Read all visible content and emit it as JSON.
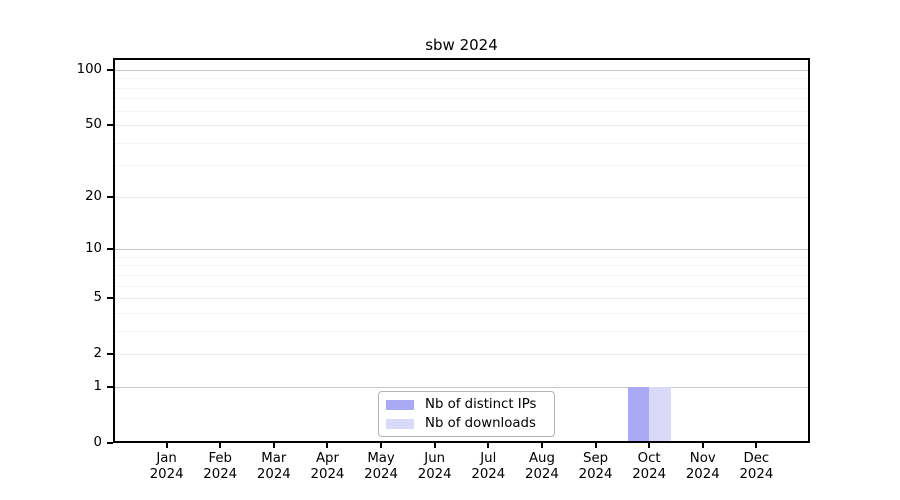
{
  "title": "sbw 2024",
  "legend": {
    "items": [
      {
        "label": "Nb of distinct IPs",
        "color": "#a9a9f5"
      },
      {
        "label": "Nb of downloads",
        "color": "#dadaf8"
      }
    ],
    "border_color": "#b4b4b4",
    "position": "bottom-center"
  },
  "chart_data": {
    "type": "bar",
    "title": "sbw 2024",
    "scale": "log1p",
    "categories": [
      "Jan",
      "Feb",
      "Mar",
      "Apr",
      "May",
      "Jun",
      "Jul",
      "Aug",
      "Sep",
      "Oct",
      "Nov",
      "Dec"
    ],
    "category_year": "2024",
    "series": [
      {
        "name": "Nb of distinct IPs",
        "color": "#a9a9f5",
        "values": [
          0,
          0,
          0,
          0,
          0,
          0,
          0,
          0,
          0,
          1,
          0,
          0
        ]
      },
      {
        "name": "Nb of downloads",
        "color": "#dadaf8",
        "values": [
          0,
          0,
          0,
          0,
          0,
          0,
          0,
          0,
          0,
          1,
          0,
          0
        ]
      }
    ],
    "xlabel": "",
    "ylabel": "",
    "yticks": [
      0,
      1,
      2,
      5,
      10,
      20,
      50,
      100
    ],
    "minor_yticks": [
      3,
      4,
      6,
      7,
      8,
      9,
      30,
      40,
      60,
      70,
      80,
      90
    ],
    "ylim": [
      0,
      116
    ],
    "grid": "horizontal",
    "colors": {
      "strong_grid": "#c6c6c6",
      "mid_grid": "#ebebeb",
      "minor_grid": "#f4f4f4",
      "axis": "#000000"
    }
  }
}
